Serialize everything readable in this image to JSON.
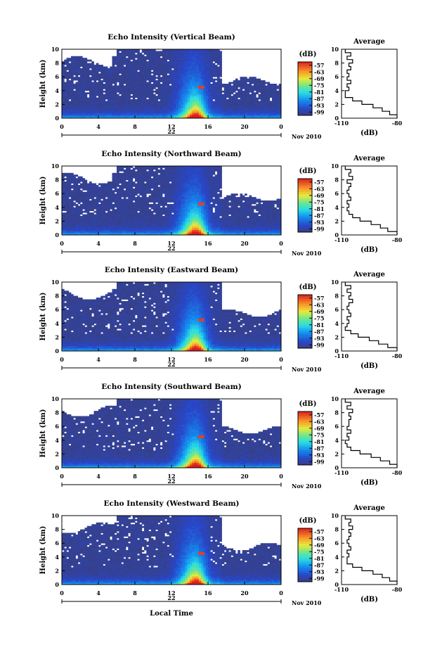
{
  "chart_data": [
    {
      "type": "heatmap",
      "title": "Echo Intensity (Vertical Beam)",
      "ylabel": "Height (km)",
      "xlabel": "",
      "ylim": [
        0,
        10
      ],
      "xlim": [
        0,
        24
      ],
      "x_ticks": [
        "0",
        "4",
        "8",
        "12",
        "16",
        "20",
        "0"
      ],
      "y_ticks": [
        "0",
        "2",
        "4",
        "6",
        "8",
        "10"
      ],
      "day_label": "22",
      "month_label": "Nov 2010",
      "colorbar": {
        "unit": "(dB)",
        "ticks": [
          "-57",
          "-63",
          "-69",
          "-75",
          "-81",
          "-87",
          "-93",
          "-99"
        ],
        "range": [
          -102,
          -54
        ]
      },
      "average_profile": {
        "title": "Average",
        "xlabel": "(dB)",
        "xlim": [
          -110,
          -80
        ],
        "x_ticks": [
          "-110",
          "-80"
        ],
        "y_ticks": [
          "0",
          "2",
          "4",
          "6",
          "8",
          "10"
        ],
        "heights": [
          0.0,
          0.5,
          1.0,
          1.5,
          2.0,
          2.5,
          3.0,
          3.5,
          4.0,
          4.5,
          5.0,
          5.5,
          6.0,
          6.5,
          7.0,
          7.5,
          8.0,
          8.5,
          9.0,
          9.5
        ],
        "values": [
          -80,
          -84,
          -88,
          -93,
          -99,
          -104,
          -108,
          -108,
          -106,
          -107,
          -105,
          -107,
          -106,
          -107,
          -105,
          -106,
          -104,
          -107,
          -105,
          -108
        ]
      }
    },
    {
      "type": "heatmap",
      "title": "Echo Intensity (Northward Beam)",
      "ylabel": "Height (km)",
      "xlabel": "",
      "ylim": [
        0,
        10
      ],
      "xlim": [
        0,
        24
      ],
      "x_ticks": [
        "0",
        "4",
        "8",
        "12",
        "16",
        "20",
        "0"
      ],
      "y_ticks": [
        "0",
        "2",
        "4",
        "6",
        "8",
        "10"
      ],
      "day_label": "22",
      "month_label": "Nov 2010",
      "colorbar": {
        "unit": "(dB)",
        "ticks": [
          "-57",
          "-63",
          "-69",
          "-75",
          "-81",
          "-87",
          "-93",
          "-99"
        ],
        "range": [
          -102,
          -54
        ]
      },
      "average_profile": {
        "title": "Average",
        "xlabel": "(dB)",
        "xlim": [
          -110,
          -80
        ],
        "x_ticks": [
          "-110",
          "-80"
        ],
        "y_ticks": [
          "0",
          "2",
          "4",
          "6",
          "8",
          "10"
        ],
        "heights": [
          0.0,
          0.5,
          1.0,
          1.5,
          2.0,
          2.5,
          3.0,
          3.5,
          4.0,
          4.5,
          5.0,
          5.5,
          6.0,
          6.5,
          7.0,
          7.5,
          8.0,
          8.5,
          9.0,
          9.5
        ],
        "values": [
          -80,
          -85,
          -89,
          -94,
          -100,
          -104,
          -106,
          -107,
          -106,
          -107,
          -105,
          -106,
          -107,
          -106,
          -105,
          -107,
          -104,
          -106,
          -105,
          -108
        ]
      }
    },
    {
      "type": "heatmap",
      "title": "Echo Intensity (Eastward Beam)",
      "ylabel": "Height (km)",
      "xlabel": "",
      "ylim": [
        0,
        10
      ],
      "xlim": [
        0,
        24
      ],
      "x_ticks": [
        "0",
        "4",
        "8",
        "12",
        "16",
        "20",
        "0"
      ],
      "y_ticks": [
        "0",
        "2",
        "4",
        "6",
        "8",
        "10"
      ],
      "day_label": "22",
      "month_label": "Nov 2010",
      "colorbar": {
        "unit": "(dB)",
        "ticks": [
          "-57",
          "-63",
          "-69",
          "-75",
          "-81",
          "-87",
          "-93",
          "-99"
        ],
        "range": [
          -102,
          -54
        ]
      },
      "average_profile": {
        "title": "Average",
        "xlabel": "(dB)",
        "xlim": [
          -110,
          -80
        ],
        "x_ticks": [
          "-110",
          "-80"
        ],
        "y_ticks": [
          "0",
          "2",
          "4",
          "6",
          "8",
          "10"
        ],
        "heights": [
          0.0,
          0.5,
          1.0,
          1.5,
          2.0,
          2.5,
          3.0,
          3.5,
          4.0,
          4.5,
          5.0,
          5.5,
          6.0,
          6.5,
          7.0,
          7.5,
          8.0,
          8.5,
          9.0,
          9.5
        ],
        "values": [
          -80,
          -85,
          -90,
          -95,
          -101,
          -105,
          -108,
          -107,
          -106,
          -107,
          -105,
          -106,
          -107,
          -106,
          -104,
          -106,
          -105,
          -107,
          -105,
          -108
        ]
      }
    },
    {
      "type": "heatmap",
      "title": "Echo Intensity (Southward Beam)",
      "ylabel": "Height (km)",
      "xlabel": "",
      "ylim": [
        0,
        10
      ],
      "xlim": [
        0,
        24
      ],
      "x_ticks": [
        "0",
        "4",
        "8",
        "12",
        "16",
        "20",
        "0"
      ],
      "y_ticks": [
        "0",
        "2",
        "4",
        "6",
        "8",
        "10"
      ],
      "day_label": "22",
      "month_label": "Nov 2010",
      "colorbar": {
        "unit": "(dB)",
        "ticks": [
          "-57",
          "-63",
          "-69",
          "-75",
          "-81",
          "-87",
          "-93",
          "-99"
        ],
        "range": [
          -102,
          -54
        ]
      },
      "average_profile": {
        "title": "Average",
        "xlabel": "(dB)",
        "xlim": [
          -110,
          -80
        ],
        "x_ticks": [
          "-110",
          "-80"
        ],
        "y_ticks": [
          "0",
          "2",
          "4",
          "6",
          "8",
          "10"
        ],
        "heights": [
          0.0,
          0.5,
          1.0,
          1.5,
          2.0,
          2.5,
          3.0,
          3.5,
          4.0,
          4.5,
          5.0,
          5.5,
          6.0,
          6.5,
          7.0,
          7.5,
          8.0,
          8.5,
          9.0,
          9.5
        ],
        "values": [
          -80,
          -84,
          -89,
          -94,
          -100,
          -105,
          -107,
          -108,
          -106,
          -107,
          -105,
          -107,
          -106,
          -106,
          -105,
          -106,
          -104,
          -107,
          -105,
          -108
        ]
      }
    },
    {
      "type": "heatmap",
      "title": "Echo Intensity (Westward Beam)",
      "ylabel": "Height (km)",
      "xlabel": "Local Time",
      "ylim": [
        0,
        10
      ],
      "xlim": [
        0,
        24
      ],
      "x_ticks": [
        "0",
        "4",
        "8",
        "12",
        "16",
        "20",
        "0"
      ],
      "y_ticks": [
        "0",
        "2",
        "4",
        "6",
        "8",
        "10"
      ],
      "day_label": "22",
      "month_label": "Nov 2010",
      "colorbar": {
        "unit": "(dB)",
        "ticks": [
          "-57",
          "-63",
          "-69",
          "-75",
          "-81",
          "-87",
          "-93",
          "-99"
        ],
        "range": [
          -102,
          -54
        ]
      },
      "average_profile": {
        "title": "Average",
        "xlabel": "(dB)",
        "xlim": [
          -110,
          -80
        ],
        "x_ticks": [
          "-110",
          "-80"
        ],
        "y_ticks": [
          "0",
          "2",
          "4",
          "6",
          "8",
          "10"
        ],
        "heights": [
          0.0,
          0.5,
          1.0,
          1.5,
          2.0,
          2.5,
          3.0,
          3.5,
          4.0,
          4.5,
          5.0,
          5.5,
          6.0,
          6.5,
          7.0,
          7.5,
          8.0,
          8.5,
          9.0,
          9.5
        ],
        "values": [
          -80,
          -84,
          -88,
          -93,
          -99,
          -104,
          -107,
          -107,
          -106,
          -107,
          -105,
          -106,
          -107,
          -106,
          -105,
          -106,
          -104,
          -106,
          -105,
          -108
        ]
      }
    }
  ],
  "colors": {
    "no_data": "#ffffff",
    "background_echo": "#3a3f7a",
    "axis": "#000000"
  }
}
